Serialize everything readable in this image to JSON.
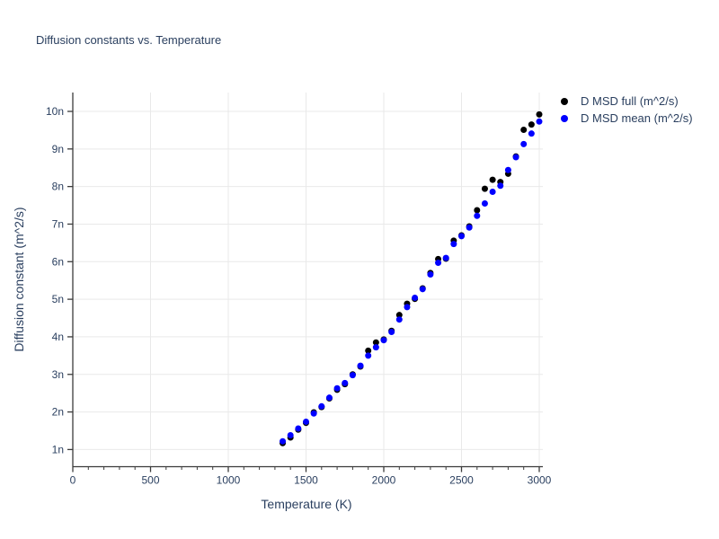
{
  "figure": {
    "background": "#ffffff"
  },
  "style": {
    "text_color": "#2a3f5f",
    "grid_color": "#e9e9e9",
    "axis_color": "#3b3b3b",
    "marker_radius": 3.5
  },
  "chart_data": {
    "type": "scatter",
    "title": "Diffusion constants vs. Temperature",
    "xlabel": "Temperature (K)",
    "ylabel": "Diffusion constant (m^2/s)",
    "value_unit_suffix": "n",
    "x": [
      1350,
      1400,
      1450,
      1500,
      1550,
      1600,
      1650,
      1700,
      1750,
      1800,
      1850,
      1900,
      1950,
      2000,
      2050,
      2100,
      2150,
      2200,
      2250,
      2300,
      2350,
      2400,
      2450,
      2500,
      2550,
      2600,
      2650,
      2700,
      2750,
      2800,
      2850,
      2900,
      2950,
      3000
    ],
    "series": [
      {
        "name": "D MSD full (m^2/s)",
        "color": "#000000",
        "values": [
          1.17,
          1.32,
          1.53,
          1.71,
          1.99,
          2.13,
          2.36,
          2.59,
          2.74,
          3.0,
          3.21,
          3.63,
          3.85,
          3.93,
          4.16,
          4.58,
          4.88,
          5.01,
          5.29,
          5.7,
          6.07,
          6.08,
          6.56,
          6.7,
          6.94,
          7.37,
          7.94,
          8.18,
          8.12,
          8.34,
          8.8,
          9.51,
          9.65,
          9.92
        ]
      },
      {
        "name": "D MSD mean (m^2/s)",
        "color": "#0000ff",
        "values": [
          1.22,
          1.38,
          1.56,
          1.74,
          1.96,
          2.15,
          2.38,
          2.63,
          2.77,
          2.98,
          3.23,
          3.5,
          3.72,
          3.91,
          4.13,
          4.46,
          4.79,
          5.04,
          5.27,
          5.66,
          5.97,
          6.1,
          6.47,
          6.68,
          6.91,
          7.22,
          7.55,
          7.86,
          8.02,
          8.44,
          8.78,
          9.13,
          9.41,
          9.73
        ]
      }
    ],
    "xlim": [
      0,
      3025
    ],
    "ylim": [
      0.55,
      10.5
    ],
    "xticks": [
      0,
      500,
      1000,
      1500,
      2000,
      2500,
      3000
    ],
    "x_minor_tick_step": 100,
    "yticks": [
      1,
      2,
      3,
      4,
      5,
      6,
      7,
      8,
      9,
      10
    ],
    "ytick_labels": [
      "1n",
      "2n",
      "3n",
      "4n",
      "5n",
      "6n",
      "7n",
      "8n",
      "9n",
      "10n"
    ],
    "grid": true,
    "legend_position": "top-right-outside"
  }
}
